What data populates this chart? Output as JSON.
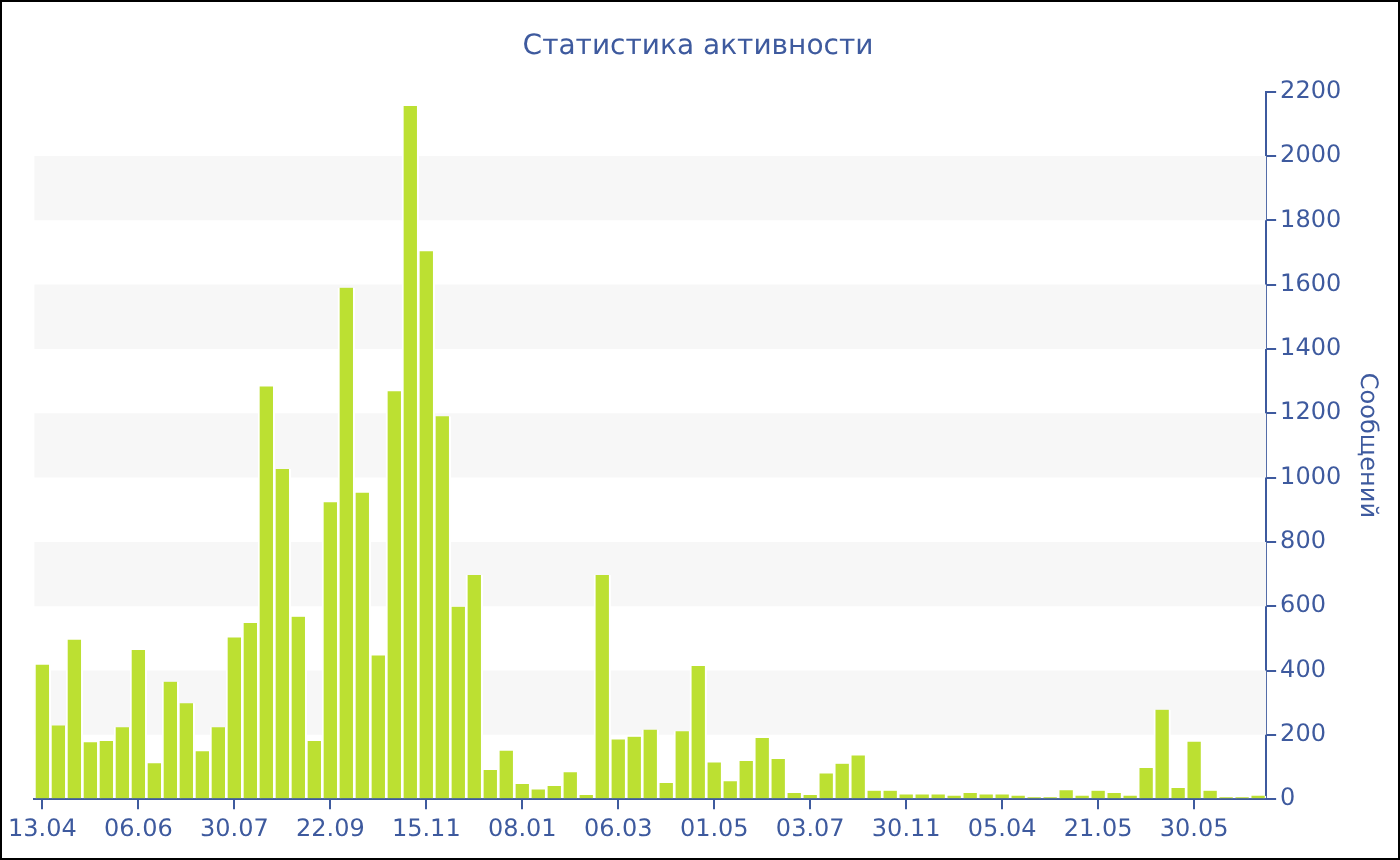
{
  "chart_data": {
    "type": "bar",
    "title": "Статистика активности",
    "ylabel": "Сообщений",
    "color": "#bce032",
    "categories": [
      "13.04",
      null,
      null,
      null,
      null,
      null,
      "06.06",
      null,
      null,
      null,
      null,
      null,
      "30.07",
      null,
      null,
      null,
      null,
      null,
      "22.09",
      null,
      null,
      null,
      null,
      null,
      "15.11",
      null,
      null,
      null,
      null,
      null,
      "08.01",
      null,
      null,
      null,
      null,
      null,
      "06.03",
      null,
      null,
      null,
      null,
      null,
      "01.05",
      null,
      null,
      null,
      null,
      null,
      "03.07",
      null,
      null,
      null,
      null,
      null,
      "30.11",
      null,
      null,
      null,
      null,
      null,
      "05.04",
      null,
      null,
      null,
      null,
      null,
      "21.05",
      null,
      null,
      null,
      null,
      null,
      "30.05",
      null,
      null,
      null,
      null
    ],
    "values": [
      418,
      229,
      496,
      177,
      181,
      224,
      464,
      112,
      365,
      298,
      149,
      224,
      503,
      548,
      1283,
      1027,
      567,
      181,
      923,
      1590,
      953,
      447,
      1268,
      2155,
      1704,
      1191,
      598,
      697,
      91,
      151,
      47,
      30,
      41,
      84,
      13,
      697,
      186,
      194,
      216,
      50,
      211,
      414,
      114,
      56,
      119,
      190,
      125,
      19,
      13,
      80,
      110,
      136,
      26,
      26,
      15,
      15,
      15,
      11,
      19,
      15,
      15,
      11,
      6,
      6,
      28,
      11,
      26,
      19,
      11,
      97,
      278,
      35,
      179,
      26,
      6,
      6,
      11
    ],
    "ylim": [
      0,
      2200
    ],
    "yticks": [
      0,
      200,
      400,
      600,
      800,
      1000,
      1200,
      1400,
      1600,
      1800,
      2000,
      2200
    ],
    "bands": [
      {
        "axis": "y",
        "from": 200,
        "to": 400,
        "color": "#f7f7f7"
      },
      {
        "axis": "y",
        "from": 600,
        "to": 800,
        "color": "#f7f7f7"
      },
      {
        "axis": "y",
        "from": 1000,
        "to": 1200,
        "color": "#f7f7f7"
      },
      {
        "axis": "y",
        "from": 1400,
        "to": 1600,
        "color": "#f7f7f7"
      },
      {
        "axis": "y",
        "from": 1800,
        "to": 2000,
        "color": "#f7f7f7"
      }
    ]
  }
}
